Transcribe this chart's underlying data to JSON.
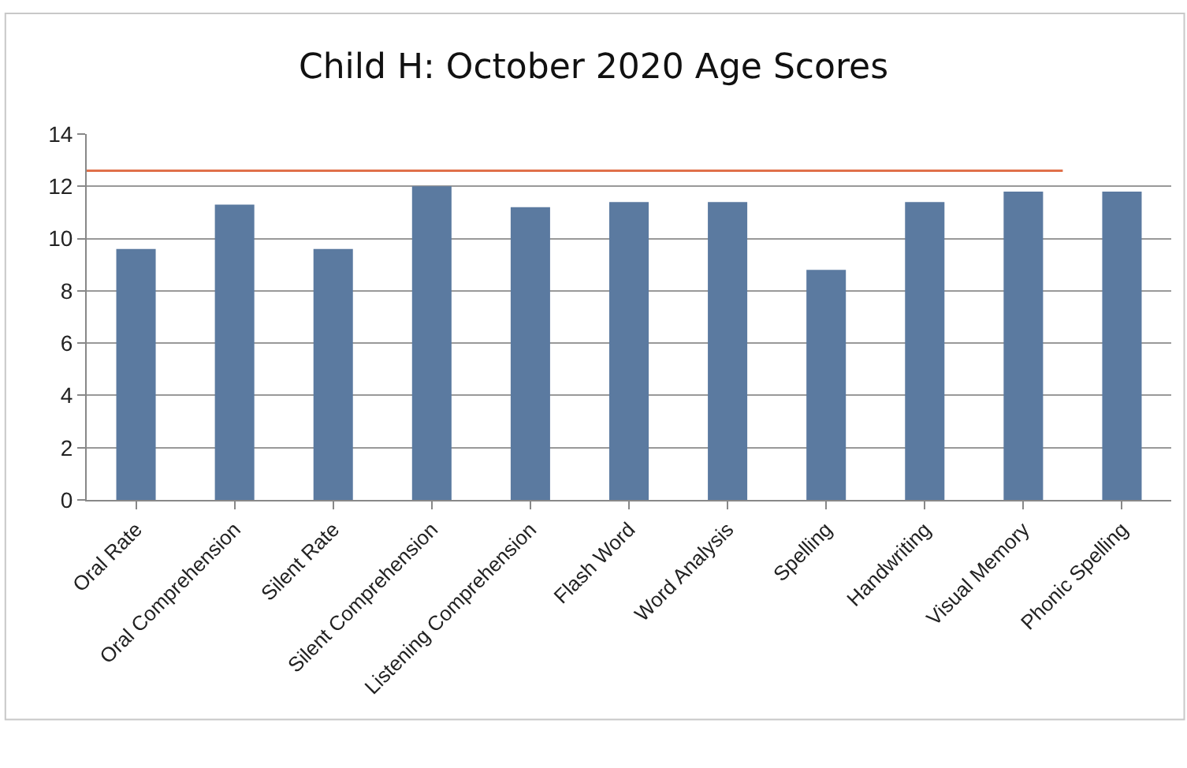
{
  "chart_data": {
    "type": "bar",
    "title": "Child H: October 2020 Age Scores",
    "categories": [
      "Oral Rate",
      "Oral Comprehension",
      "Silent Rate",
      "Silent Comprehension",
      "Listening Comprehension",
      "Flash Word",
      "Word Analysis",
      "Spelling",
      "Handwriting",
      "Visual Memory",
      "Phonic Spelling"
    ],
    "values": [
      9.6,
      11.3,
      9.6,
      12,
      11.2,
      11.4,
      11.4,
      8.8,
      11.4,
      11.8,
      11.8
    ],
    "color": "#5b7aa0",
    "ylim": [
      0,
      14
    ],
    "yticks": [
      0,
      2,
      4,
      6,
      8,
      10,
      12,
      14
    ],
    "grid": "y",
    "ref_lines": [
      {
        "axis": "y",
        "value": 12.6,
        "color": "#e0704a"
      }
    ]
  }
}
